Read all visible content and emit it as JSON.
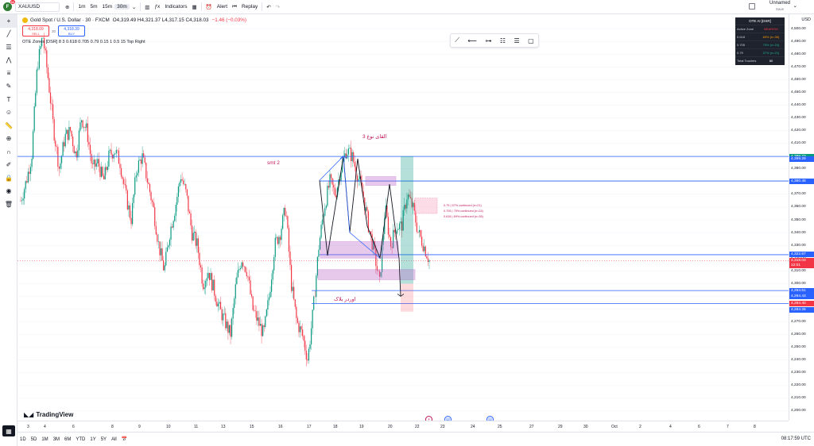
{
  "topbar": {
    "avatar_letter": "F",
    "avatar_badge": "11",
    "symbol": "XAUUSD",
    "intervals": [
      "1m",
      "5m",
      "15m",
      "30m"
    ],
    "active_interval": "30m",
    "indicators_label": "Indicators",
    "alert_label": "Alert",
    "replay_label": "Replay",
    "layout_name": "Unnamed",
    "layout_sub": "Save"
  },
  "legend": {
    "title": "Gold Spot / U.S. Dollar · 30 · FXCM",
    "ohlc": "O4,319.49  H4,321.37  L4,317.15  C4,318.03",
    "change": "−1.46 (−0.03%)",
    "sell_price": "4,318.09",
    "sell_label": "SELL",
    "spread": "30",
    "buy_price": "4,318.39",
    "buy_label": "BUY",
    "indicator": "OTE Zones [DSR]  8  3  0.618  0.705  0.79  0.15  1  0.5  15  Top Right"
  },
  "ote_table": {
    "title": "OTE AI [DSR]",
    "rows": [
      {
        "label": "Active Zone",
        "value": "BEARISH"
      },
      {
        "label": "0.618",
        "value": "69% (n=35)"
      },
      {
        "label": "0.705",
        "value": "75% (n=24)"
      },
      {
        "label": "0.79",
        "value": "57% (n=21)"
      },
      {
        "label": "Total Touches",
        "value": "80"
      }
    ]
  },
  "annotations": {
    "smt": "smt 2",
    "arabic_top": "القای نوع 3",
    "order_block": "اوردر بلاک",
    "fib_079": "0.79  |  57% continued (n=21)",
    "fib_0705": "0.705  |  75% continued (n=24)",
    "fib_0618": "0.618  |  69% continued (n=35)"
  },
  "price_axis": {
    "currency": "USD",
    "labels": [
      "4,500.00",
      "4,490.00",
      "4,480.00",
      "4,470.00",
      "4,460.00",
      "4,450.00",
      "4,440.00",
      "4,430.00",
      "4,420.00",
      "4,410.00",
      "4,400.00",
      "4,390.00",
      "4,380.00",
      "4,370.00",
      "4,360.00",
      "4,350.00",
      "4,340.00",
      "4,330.00",
      "4,320.00",
      "4,310.00",
      "4,300.00",
      "4,290.00",
      "4,280.00",
      "4,270.00",
      "4,260.00",
      "4,250.00",
      "4,240.00",
      "4,230.00",
      "4,220.00",
      "4,210.00",
      "4,200.00"
    ],
    "tags": [
      {
        "text": "4,399.73",
        "color": "#089981",
        "price": 4399.73
      },
      {
        "text": "4,399.29",
        "color": "#2962ff",
        "price": 4397.5
      },
      {
        "text": "4,380.48",
        "color": "#2962ff",
        "price": 4380.48
      },
      {
        "text": "4,322.67",
        "color": "#2962ff",
        "price": 4322.67
      },
      {
        "text": "4,318.03",
        "color": "#f23645",
        "price": 4318.03
      },
      {
        "text": "12:01",
        "color": "#f23645",
        "price": 4314.0
      },
      {
        "text": "4,294.51",
        "color": "#2962ff",
        "price": 4294.51
      },
      {
        "text": "4,294.43",
        "color": "#2962ff",
        "price": 4290.0
      },
      {
        "text": "4,284.40",
        "color": "#f23645",
        "price": 4284.4
      },
      {
        "text": "4,284.26",
        "color": "#2962ff",
        "price": 4279.5
      }
    ]
  },
  "time_axis": {
    "labels": [
      "3",
      "4",
      "6",
      "8",
      "9",
      "10",
      "11",
      "13",
      "15",
      "16",
      "17",
      "18",
      "19",
      "20",
      "22",
      "23",
      "24",
      "25",
      "27",
      "29",
      "30",
      "Oct",
      "2",
      "4",
      "6",
      "7",
      "8"
    ]
  },
  "bottombar": {
    "ranges": [
      "1D",
      "5D",
      "1M",
      "3M",
      "6M",
      "YTD",
      "1Y",
      "5Y",
      "All"
    ],
    "clock": "08:17:59 UTC"
  },
  "branding": {
    "logo_text": "TradingView"
  },
  "chart_data": {
    "type": "candlestick",
    "symbol": "XAUUSD",
    "interval": "30",
    "ylim": [
      4200,
      4510
    ],
    "candles_close_path": [
      4365,
      4380,
      4400,
      4470,
      4495,
      4460,
      4420,
      4390,
      4415,
      4420,
      4400,
      4430,
      4420,
      4390,
      4395,
      4380,
      4400,
      4405,
      4395,
      4370,
      4350,
      4390,
      4400,
      4380,
      4360,
      4330,
      4310,
      4340,
      4360,
      4385,
      4370,
      4340,
      4330,
      4300,
      4310,
      4295,
      4280,
      4270,
      4260,
      4300,
      4320,
      4310,
      4280,
      4270,
      4260,
      4290,
      4330,
      4340,
      4360,
      4300,
      4270,
      4260,
      4240,
      4280,
      4330,
      4360,
      4380,
      4370,
      4390,
      4405,
      4400,
      4385,
      4370,
      4345,
      4325,
      4300,
      4360,
      4330,
      4345,
      4345,
      4370,
      4360,
      4340,
      4330,
      4318
    ],
    "levels": [
      4399.73,
      4399.29,
      4380.48,
      4322.67,
      4318.03,
      4294.51,
      4294.43,
      4284.4,
      4284.26
    ]
  }
}
